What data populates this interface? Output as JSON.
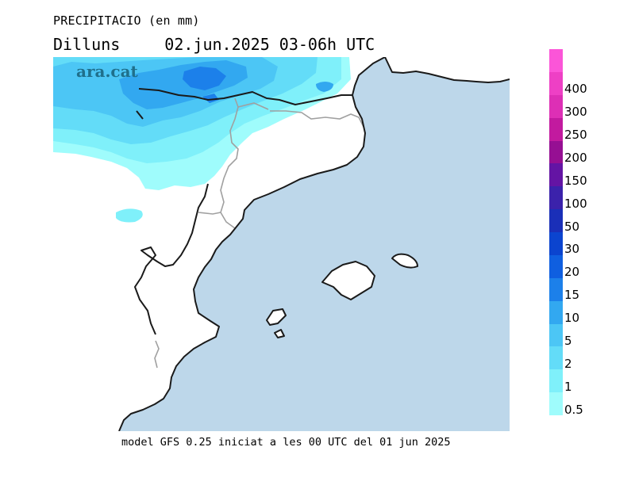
{
  "header": {
    "title": "PRECIPITACIO (en mm)",
    "day": "Dilluns",
    "date_time": "02.jun.2025 03-06h UTC"
  },
  "map": {
    "logo_text": "ara.cat",
    "sea_color": "#bdd7ea",
    "land_color": "#ffffff",
    "coast_color": "#1a1a1a",
    "border_color": "#a0a0a0"
  },
  "footer": {
    "text": "model GFS 0.25 iniciat a les 00 UTC del 01 jun 2025"
  },
  "legend": {
    "items": [
      {
        "label": "0.5",
        "color": "#9ffcfc"
      },
      {
        "label": "1",
        "color": "#7ff0fa"
      },
      {
        "label": "2",
        "color": "#63dcf8"
      },
      {
        "label": "5",
        "color": "#4cc6f5"
      },
      {
        "label": "10",
        "color": "#32a8f0"
      },
      {
        "label": "15",
        "color": "#1c80ea"
      },
      {
        "label": "20",
        "color": "#0f5fe0"
      },
      {
        "label": "30",
        "color": "#0b44cf"
      },
      {
        "label": "50",
        "color": "#1a2fb8"
      },
      {
        "label": "100",
        "color": "#3b22ab"
      },
      {
        "label": "150",
        "color": "#6414a4"
      },
      {
        "label": "200",
        "color": "#960f93"
      },
      {
        "label": "250",
        "color": "#c21a9f"
      },
      {
        "label": "300",
        "color": "#dd2fb5"
      },
      {
        "label": "400",
        "color": "#ee40c5"
      },
      {
        "label": "",
        "color": "#fb55d8"
      }
    ]
  }
}
